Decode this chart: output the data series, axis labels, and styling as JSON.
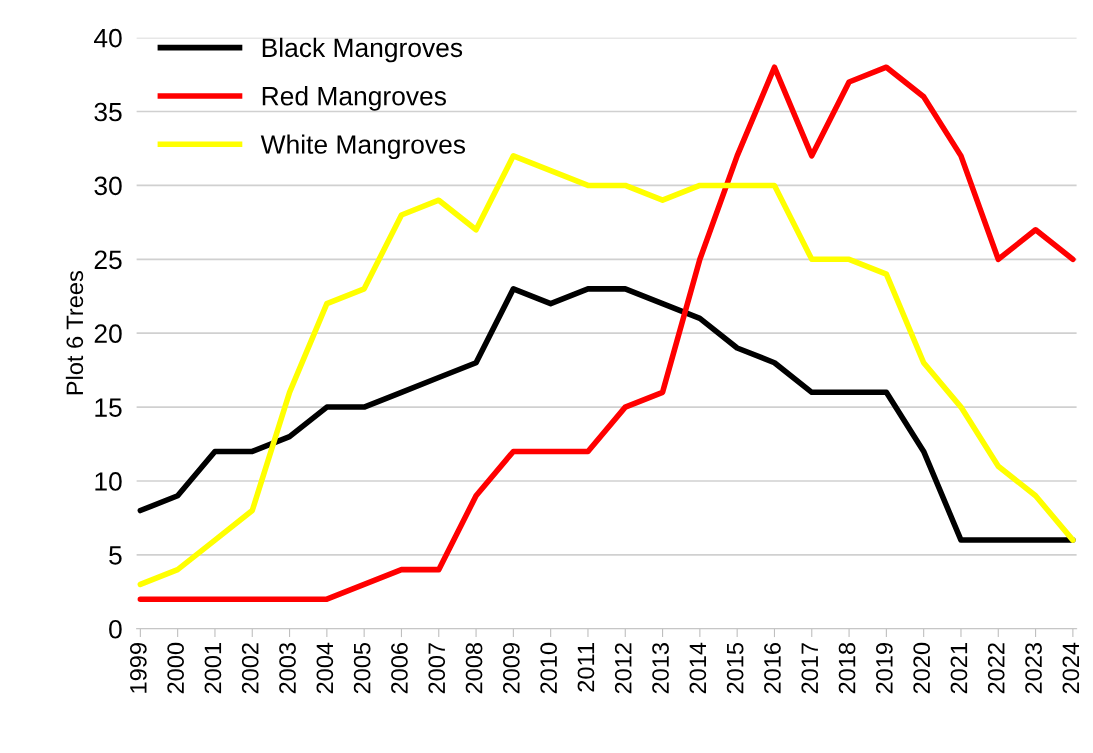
{
  "chart_data": {
    "type": "line",
    "ylabel": "Plot 6 Trees",
    "categories": [
      "1999",
      "2000",
      "2001",
      "2002",
      "2003",
      "2004",
      "2005",
      "2006",
      "2007",
      "2008",
      "2009",
      "2010",
      "2011",
      "2012",
      "2013",
      "2014",
      "2015",
      "2016",
      "2017",
      "2018",
      "2019",
      "2020",
      "2021",
      "2022",
      "2023",
      "2024"
    ],
    "series": [
      {
        "name": "Black Mangroves",
        "color": "#000000",
        "values": [
          8,
          9,
          12,
          12,
          13,
          15,
          15,
          16,
          17,
          18,
          23,
          22,
          23,
          23,
          22,
          21,
          19,
          18,
          16,
          16,
          16,
          12,
          6,
          6,
          6,
          6
        ]
      },
      {
        "name": "Red Mangroves",
        "color": "#ff0000",
        "values": [
          2,
          2,
          2,
          2,
          2,
          2,
          3,
          4,
          4,
          9,
          12,
          12,
          12,
          15,
          16,
          25,
          32,
          38,
          32,
          37,
          38,
          36,
          32,
          25,
          27,
          25
        ]
      },
      {
        "name": "White Mangroves",
        "color": "#ffff00",
        "values": [
          3,
          4,
          6,
          8,
          16,
          22,
          23,
          28,
          29,
          27,
          32,
          31,
          30,
          30,
          29,
          30,
          30,
          30,
          25,
          25,
          24,
          18,
          15,
          11,
          9,
          6
        ]
      }
    ],
    "ylim": [
      0,
      40
    ],
    "yticks": [
      0,
      5,
      10,
      15,
      20,
      25,
      30,
      35,
      40
    ],
    "grid": "y",
    "legend": "top left",
    "marker": "none",
    "line_style": "solid"
  }
}
